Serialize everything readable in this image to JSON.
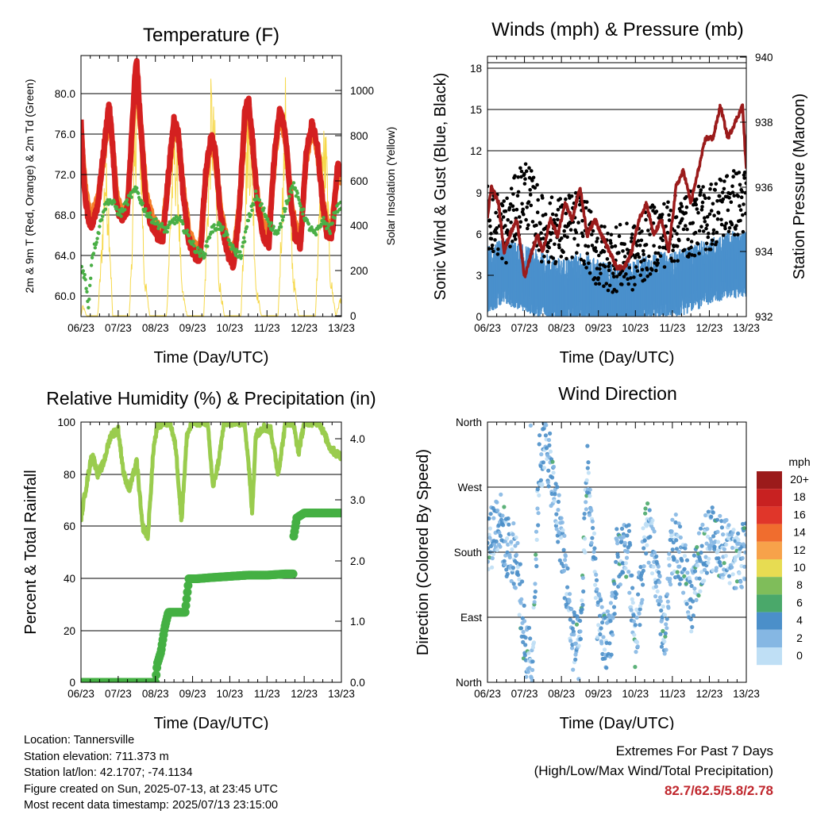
{
  "chart_data": [
    {
      "type": "line",
      "title": "Temperature (F)",
      "xlabel": "Time (Day/UTC)",
      "ylabel_left": "2m & 9m T (Red, Orange) & 2m Td (Green)",
      "ylabel_right": "Solar Insolation (Yellow)",
      "x_ticks": [
        "06/23",
        "07/23",
        "08/23",
        "09/23",
        "10/23",
        "11/23",
        "12/23",
        "13/23"
      ],
      "y_ticks_left": [
        "60.0",
        "64.0",
        "68.0",
        "72.0",
        "76.0",
        "80.0"
      ],
      "y_ticks_right": [
        "0",
        "200",
        "400",
        "600",
        "800",
        "1000"
      ],
      "ylim_left": [
        58.0,
        84.5
      ],
      "ylim_right": [
        0,
        1150
      ],
      "xlim_days": [
        0,
        7
      ],
      "grid": true,
      "colors": {
        "t2m": "#d42020",
        "t9m": "#f57f2a",
        "td2m": "#4aaf46",
        "solar": "#f6d84a"
      },
      "series": [
        {
          "name": "2m T",
          "color": "#d42020",
          "x": [
            0,
            0.1,
            0.25,
            0.45,
            0.6,
            0.75,
            0.85,
            0.95,
            1.1,
            1.25,
            1.35,
            1.45,
            1.5,
            1.6,
            1.75,
            1.9,
            2.05,
            2.2,
            2.35,
            2.5,
            2.62,
            2.75,
            2.9,
            3.05,
            3.2,
            3.35,
            3.5,
            3.62,
            3.75,
            3.95,
            4.1,
            4.25,
            4.4,
            4.5,
            4.62,
            4.75,
            4.9,
            5.05,
            5.2,
            5.35,
            5.5,
            5.62,
            5.75,
            5.9,
            6.05,
            6.2,
            6.35,
            6.5,
            6.62,
            6.75,
            6.9,
            7.0
          ],
          "y": [
            77,
            70,
            66.5,
            69,
            74,
            79,
            75,
            69,
            67.5,
            68.5,
            75,
            82,
            83,
            77,
            69,
            67,
            66,
            65.5,
            72,
            77.5,
            76,
            70,
            65.5,
            64,
            63.5,
            72,
            76,
            74,
            68,
            64,
            63,
            68,
            78,
            79.5,
            75,
            69,
            66,
            65,
            74,
            78.5,
            76,
            70,
            66,
            65,
            74,
            77,
            75,
            69,
            66,
            66,
            73,
            72
          ]
        },
        {
          "name": "9m T",
          "color": "#f57f2a",
          "x": [
            0,
            0.1,
            0.25,
            0.45,
            0.6,
            0.75,
            0.85,
            0.95,
            1.1,
            1.25,
            1.35,
            1.45,
            1.5,
            1.6,
            1.75,
            1.9,
            2.05,
            2.2,
            2.35,
            2.5,
            2.62,
            2.75,
            2.9,
            3.05,
            3.2,
            3.35,
            3.5,
            3.62,
            3.75,
            3.95,
            4.1,
            4.25,
            4.4,
            4.5,
            4.62,
            4.75,
            4.9,
            5.05,
            5.2,
            5.35,
            5.5,
            5.62,
            5.75,
            5.9,
            6.05,
            6.2,
            6.35,
            6.5,
            6.62,
            6.75,
            6.9,
            7.0
          ],
          "y": [
            76.5,
            71,
            67.5,
            69.5,
            73.5,
            78,
            75,
            70,
            68,
            69,
            74.5,
            81,
            82,
            77,
            70,
            68,
            67,
            66.5,
            71.5,
            77,
            75.5,
            70.5,
            66.5,
            65,
            64.5,
            71.5,
            75.5,
            73.5,
            68.5,
            65,
            64,
            68.5,
            77,
            78.5,
            74.5,
            69.5,
            67,
            66,
            73.5,
            78,
            75.5,
            70.5,
            67,
            66,
            73.5,
            76.5,
            74.5,
            69.5,
            67,
            67,
            72.5,
            71.5
          ]
        },
        {
          "name": "2m Td",
          "color": "#4aaf46",
          "x": [
            0,
            0.1,
            0.2,
            0.3,
            0.45,
            0.6,
            0.75,
            0.9,
            1.05,
            1.2,
            1.35,
            1.5,
            1.65,
            1.8,
            1.95,
            2.1,
            2.3,
            2.5,
            2.65,
            2.8,
            2.95,
            3.1,
            3.3,
            3.5,
            3.7,
            3.9,
            4.1,
            4.3,
            4.5,
            4.7,
            4.9,
            5.1,
            5.3,
            5.5,
            5.7,
            5.9,
            6.1,
            6.3,
            6.5,
            6.7,
            6.85,
            7.0
          ],
          "y": [
            63,
            62,
            59,
            64,
            66,
            68.5,
            69.5,
            69,
            68,
            69,
            70,
            70.5,
            69,
            68,
            67.5,
            67,
            66.5,
            67.5,
            67.5,
            66.5,
            65.5,
            64.5,
            64,
            66.5,
            67,
            66,
            64.5,
            64,
            67.5,
            70,
            68.5,
            67,
            66,
            69,
            71,
            69,
            67,
            66,
            67.5,
            66.5,
            68.5,
            69
          ]
        },
        {
          "name": "Solar Insolation",
          "color": "#f6d84a",
          "x": [
            0,
            0.05,
            0.15,
            0.3,
            0.45,
            0.55,
            0.65,
            0.75,
            0.85,
            1.0,
            1.15,
            1.3,
            1.4,
            1.5,
            1.6,
            1.7,
            1.85,
            2.0,
            2.15,
            2.3,
            2.4,
            2.5,
            2.6,
            2.7,
            2.85,
            3.0,
            3.15,
            3.3,
            3.4,
            3.5,
            3.6,
            3.7,
            3.85,
            4.0,
            4.15,
            4.3,
            4.4,
            4.5,
            4.6,
            4.7,
            4.85,
            5.0,
            5.15,
            5.3,
            5.4,
            5.5,
            5.6,
            5.7,
            5.85,
            6.0,
            6.15,
            6.3,
            6.4,
            6.5,
            6.6,
            6.7,
            6.85,
            7.0
          ],
          "y": [
            0,
            50,
            0,
            0,
            0,
            300,
            700,
            500,
            0,
            0,
            0,
            0,
            500,
            1100,
            900,
            200,
            0,
            0,
            0,
            0,
            450,
            850,
            700,
            150,
            0,
            0,
            0,
            0,
            500,
            1000,
            800,
            200,
            0,
            0,
            0,
            0,
            550,
            950,
            750,
            150,
            0,
            0,
            0,
            0,
            500,
            1000,
            700,
            200,
            0,
            0,
            0,
            0,
            450,
            800,
            750,
            200,
            0,
            100
          ]
        }
      ]
    },
    {
      "type": "scatter",
      "title": "Winds (mph) & Pressure (mb)",
      "xlabel": "Time (Day/UTC)",
      "ylabel_left": "Sonic Wind & Gust (Blue, Black)",
      "ylabel_right": "Station Pressure (Maroon)",
      "x_ticks": [
        "06/23",
        "07/23",
        "08/23",
        "09/23",
        "10/23",
        "11/23",
        "12/23",
        "13/23"
      ],
      "y_ticks_left": [
        "0",
        "3",
        "6",
        "9",
        "12",
        "15",
        "18"
      ],
      "y_ticks_right": [
        "932",
        "934",
        "936",
        "938",
        "940"
      ],
      "ylim_left": [
        0,
        18.8
      ],
      "ylim_right": [
        932,
        940
      ],
      "xlim_days": [
        0,
        7
      ],
      "grid": true,
      "colors": {
        "wind": "#4a90cc",
        "gust": "#000000",
        "pressure": "#9b1b1b"
      },
      "series": [
        {
          "name": "Sonic Wind",
          "color": "#4a90cc",
          "x": [
            0,
            0.5,
            1,
            1.5,
            2,
            2.5,
            3,
            3.5,
            4,
            4.5,
            5,
            5.5,
            6,
            6.5,
            7
          ],
          "y": [
            3,
            3.5,
            3,
            2.5,
            2,
            2.5,
            2,
            1.5,
            2,
            2.5,
            2.5,
            3,
            3.5,
            4,
            4
          ]
        },
        {
          "name": "Gust",
          "color": "#000000",
          "x": [
            0,
            0.5,
            1,
            1.5,
            2,
            2.5,
            3,
            3.5,
            4,
            4.5,
            5,
            5.5,
            6,
            6.5,
            7
          ],
          "y": [
            7,
            6,
            9,
            6,
            6,
            6.5,
            4,
            4,
            4,
            5.5,
            6,
            6.5,
            7,
            8,
            8
          ]
        },
        {
          "name": "Station Pressure",
          "color": "#9b1b1b",
          "x": [
            0,
            0.1,
            0.3,
            0.45,
            0.6,
            0.8,
            1.0,
            1.2,
            1.35,
            1.5,
            1.7,
            1.9,
            2.1,
            2.3,
            2.5,
            2.7,
            2.9,
            3.1,
            3.3,
            3.5,
            3.7,
            3.9,
            4.1,
            4.3,
            4.5,
            4.7,
            4.9,
            5.1,
            5.3,
            5.5,
            5.7,
            5.9,
            6.1,
            6.3,
            6.5,
            6.7,
            6.9,
            7.0
          ],
          "y": [
            935,
            936,
            935.5,
            934,
            934.5,
            935,
            933.2,
            934,
            934.5,
            934,
            935,
            934.5,
            935.5,
            935,
            936,
            934.5,
            935,
            934.5,
            934,
            933.5,
            933.5,
            934,
            935,
            935.5,
            934.5,
            935,
            934,
            936,
            936.5,
            935.5,
            936.5,
            937.5,
            937.5,
            938.5,
            937.5,
            938,
            938.5,
            936.5
          ]
        }
      ]
    },
    {
      "type": "line",
      "title": "Relative Humidity (%) & Precipitation (in)",
      "xlabel": "Time (Day/UTC)",
      "ylabel_left": "Percent & Total Rainfall",
      "x_ticks": [
        "06/23",
        "07/23",
        "08/23",
        "09/23",
        "10/23",
        "11/23",
        "12/23",
        "13/23"
      ],
      "y_ticks_left": [
        "0",
        "20",
        "40",
        "60",
        "80",
        "100"
      ],
      "y_ticks_right": [
        "0.0",
        "1.0",
        "2.0",
        "3.0",
        "4.0"
      ],
      "ylim_left": [
        0,
        100
      ],
      "ylim_right": [
        0,
        4.3
      ],
      "xlim_days": [
        0,
        7
      ],
      "grid": true,
      "colors": {
        "rh": "#9acc4e",
        "precip": "#44b043"
      },
      "series": [
        {
          "name": "Relative Humidity",
          "color": "#9acc4e",
          "x": [
            0,
            0.1,
            0.3,
            0.45,
            0.6,
            0.8,
            1.0,
            1.15,
            1.3,
            1.5,
            1.65,
            1.8,
            1.95,
            2.05,
            2.2,
            2.4,
            2.55,
            2.7,
            2.85,
            3.0,
            3.2,
            3.4,
            3.55,
            3.7,
            3.85,
            4.0,
            4.2,
            4.4,
            4.5,
            4.6,
            4.7,
            4.9,
            5.1,
            5.3,
            5.5,
            5.7,
            5.85,
            6.0,
            6.2,
            6.4,
            6.55,
            6.7,
            6.85,
            7.0
          ],
          "y": [
            63,
            72,
            88,
            80,
            84,
            95,
            97,
            80,
            74,
            85,
            60,
            56,
            90,
            98,
            100,
            100,
            90,
            62,
            95,
            100,
            100,
            100,
            75,
            85,
            100,
            100,
            100,
            100,
            85,
            65,
            95,
            98,
            97,
            80,
            100,
            100,
            88,
            100,
            100,
            100,
            95,
            90,
            88,
            87
          ]
        },
        {
          "name": "Total Precipitation",
          "color": "#44b043",
          "x": [
            0,
            0.5,
            1.0,
            1.5,
            2.0,
            2.05,
            2.15,
            2.25,
            2.35,
            2.45,
            2.55,
            2.8,
            2.9,
            3.1,
            3.5,
            4.0,
            4.5,
            5.0,
            5.5,
            5.7,
            5.72,
            5.8,
            6.0,
            6.5,
            7.0
          ],
          "y": [
            0,
            0,
            0,
            0,
            0,
            0.3,
            0.5,
            0.9,
            1.15,
            1.15,
            1.15,
            1.15,
            1.7,
            1.7,
            1.72,
            1.74,
            1.76,
            1.76,
            1.78,
            1.78,
            2.4,
            2.7,
            2.78,
            2.78,
            2.78
          ]
        }
      ]
    },
    {
      "type": "scatter",
      "title": "Wind Direction",
      "xlabel": "Time (Day/UTC)",
      "ylabel_left": "Direction (Colored By Speed)",
      "x_ticks": [
        "06/23",
        "07/23",
        "08/23",
        "09/23",
        "10/23",
        "11/23",
        "12/23",
        "13/23"
      ],
      "y_ticks_left": [
        "North",
        "East",
        "South",
        "West",
        "North"
      ],
      "ylim_left": [
        0,
        360
      ],
      "xlim_days": [
        0,
        7
      ],
      "grid": true,
      "legend": {
        "title": "mph",
        "placement": "right",
        "labels": [
          "20+",
          "18",
          "16",
          "14",
          "12",
          "10",
          "8",
          "6",
          "4",
          "2",
          "0"
        ],
        "colors": [
          "#9b1b1b",
          "#c82121",
          "#e0362a",
          "#f06d2e",
          "#f7a24a",
          "#e7dc52",
          "#7fbd5a",
          "#4aa86a",
          "#4b8fc9",
          "#85b7e3",
          "#bfdff5"
        ]
      },
      "series": [
        {
          "name": "Wind Direction",
          "x": [
            0.1,
            0.3,
            0.5,
            0.8,
            1.0,
            1.2,
            1.4,
            1.6,
            1.8,
            2.0,
            2.3,
            2.5,
            2.7,
            3.0,
            3.3,
            3.5,
            3.8,
            4.0,
            4.3,
            4.5,
            4.8,
            5.0,
            5.3,
            5.5,
            5.8,
            6.0,
            6.3,
            6.5,
            6.8,
            7.0
          ],
          "y": [
            200,
            230,
            190,
            170,
            60,
            20,
            300,
            330,
            260,
            200,
            60,
            40,
            300,
            80,
            50,
            170,
            190,
            60,
            220,
            170,
            50,
            200,
            160,
            110,
            180,
            200,
            190,
            180,
            170,
            180
          ]
        }
      ]
    }
  ],
  "station": {
    "location": "Location: Tannersville",
    "elevation": "Station elevation: 711.373 m",
    "latlon": "Station lat/lon: 42.1707; -74.1134",
    "created": "Figure created on Sun, 2025-07-13, at 23:45 UTC",
    "recent": "Most recent data timestamp: 2025/07/13 23:15:00"
  },
  "extremes": {
    "line1": "Extremes For Past 7 Days",
    "line2": "(High/Low/Max Wind/Total Precipitation)",
    "values": "82.7/62.5/5.8/2.78"
  }
}
